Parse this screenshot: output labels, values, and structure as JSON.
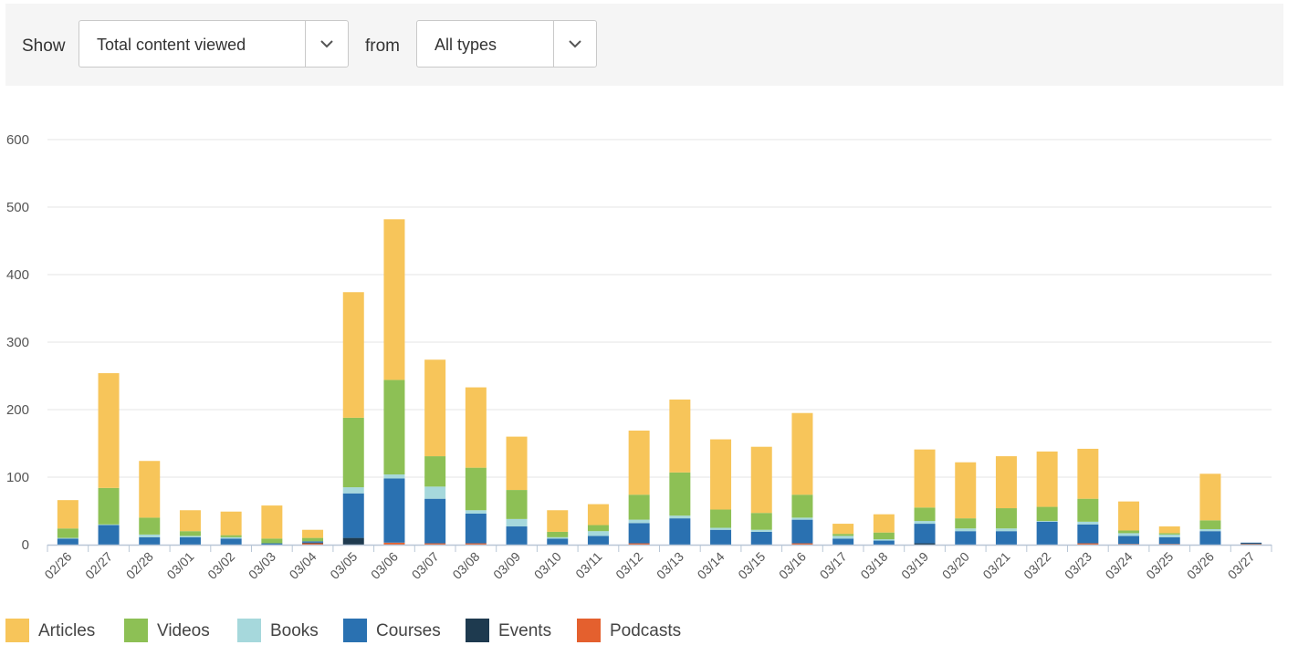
{
  "filters": {
    "show_label": "Show",
    "metric_value": "Total content viewed",
    "from_label": "from",
    "type_value": "All types"
  },
  "chart_data": {
    "type": "bar",
    "stacked": true,
    "title": "",
    "xlabel": "",
    "ylabel": "",
    "ylim": [
      0,
      600
    ],
    "yticks": [
      0,
      100,
      200,
      300,
      400,
      500,
      600
    ],
    "grid": true,
    "legend_position": "bottom-left",
    "categories": [
      "02/26",
      "02/27",
      "02/28",
      "03/01",
      "03/02",
      "03/03",
      "03/04",
      "03/05",
      "03/06",
      "03/07",
      "03/08",
      "03/09",
      "03/10",
      "03/11",
      "03/12",
      "03/13",
      "03/14",
      "03/15",
      "03/16",
      "03/17",
      "03/18",
      "03/19",
      "03/20",
      "03/21",
      "03/22",
      "03/23",
      "03/24",
      "03/25",
      "03/26",
      "03/27"
    ],
    "series": [
      {
        "name": "Podcasts",
        "color": "#e4602e",
        "values": [
          0,
          0,
          0,
          0,
          0,
          0,
          2,
          0,
          3,
          2,
          2,
          0,
          0,
          0,
          2,
          0,
          0,
          0,
          2,
          0,
          0,
          0,
          0,
          0,
          0,
          2,
          1,
          1,
          0,
          1
        ]
      },
      {
        "name": "Events",
        "color": "#1e3a4f",
        "values": [
          0,
          0,
          0,
          0,
          0,
          0,
          1,
          10,
          0,
          0,
          0,
          0,
          0,
          0,
          0,
          0,
          0,
          0,
          0,
          0,
          0,
          2,
          0,
          0,
          0,
          0,
          0,
          0,
          0,
          1
        ]
      },
      {
        "name": "Courses",
        "color": "#2a71b1",
        "values": [
          9,
          29,
          11,
          11,
          9,
          2,
          2,
          66,
          95,
          66,
          44,
          27,
          9,
          13,
          30,
          39,
          22,
          19,
          35,
          9,
          6,
          29,
          20,
          20,
          34,
          28,
          12,
          10,
          20,
          1
        ]
      },
      {
        "name": "Books",
        "color": "#a6d8dc",
        "values": [
          1,
          1,
          4,
          2,
          2,
          0,
          0,
          9,
          6,
          18,
          5,
          11,
          2,
          7,
          5,
          4,
          3,
          3,
          3,
          4,
          2,
          4,
          4,
          4,
          1,
          4,
          4,
          4,
          3,
          0
        ]
      },
      {
        "name": "Videos",
        "color": "#8dc055",
        "values": [
          14,
          54,
          25,
          7,
          3,
          7,
          5,
          103,
          140,
          45,
          63,
          43,
          8,
          9,
          37,
          64,
          27,
          25,
          34,
          3,
          10,
          20,
          15,
          30,
          21,
          34,
          4,
          2,
          13,
          0
        ]
      },
      {
        "name": "Articles",
        "color": "#f7c55a",
        "values": [
          42,
          170,
          84,
          31,
          35,
          49,
          12,
          186,
          238,
          143,
          119,
          79,
          32,
          31,
          95,
          108,
          104,
          98,
          121,
          15,
          27,
          86,
          83,
          77,
          82,
          74,
          43,
          10,
          69,
          0
        ]
      }
    ]
  },
  "legend": {
    "items": [
      {
        "label": "Articles",
        "color": "#f7c55a"
      },
      {
        "label": "Videos",
        "color": "#8dc055"
      },
      {
        "label": "Books",
        "color": "#a6d8dc"
      },
      {
        "label": "Courses",
        "color": "#2a71b1"
      },
      {
        "label": "Events",
        "color": "#1e3a4f"
      },
      {
        "label": "Podcasts",
        "color": "#e4602e"
      }
    ]
  },
  "icons": {
    "dropdown": "chevron-down-icon"
  }
}
